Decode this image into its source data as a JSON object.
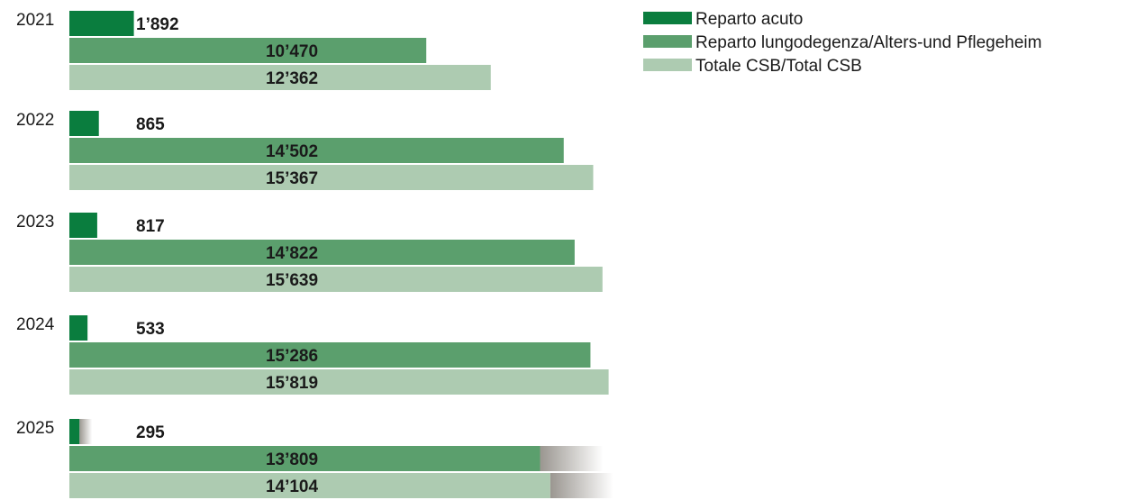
{
  "chart_data": {
    "type": "bar",
    "orientation": "horizontal",
    "legend_position": "top-right",
    "categories": [
      "2021",
      "2022",
      "2023",
      "2024",
      "2025"
    ],
    "series": [
      {
        "name": "Reparto acuto",
        "color": "#0a7d3e",
        "values": [
          1892,
          865,
          817,
          533,
          295
        ],
        "labels": [
          "1’892",
          "865",
          "817",
          "533",
          "295"
        ]
      },
      {
        "name": "Reparto lungodegenza/Alters-und Pflegeheim",
        "color": "#5b9f6d",
        "values": [
          10470,
          14502,
          14822,
          15286,
          13809
        ],
        "labels": [
          "10’470",
          "14’502",
          "14’822",
          "15’286",
          "13’809"
        ]
      },
      {
        "name": "Totale CSB/Total CSB",
        "color": "#adcbb1",
        "values": [
          12362,
          15367,
          15639,
          15819,
          14104
        ],
        "labels": [
          "12’362",
          "15’367",
          "15’639",
          "15’819",
          "14’104"
        ]
      }
    ],
    "projection": {
      "category": "2025",
      "fade_color": "#9a9690"
    }
  }
}
